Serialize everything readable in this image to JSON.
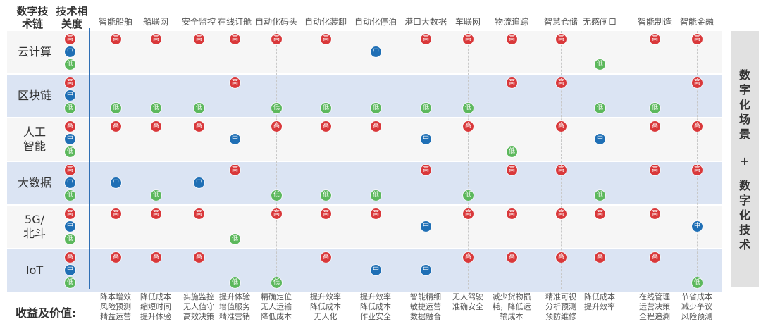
{
  "header": {
    "tech_col": "数字技术链",
    "rel_col": "技术相关度"
  },
  "levels": {
    "high": "高",
    "mid": "中",
    "low": "低"
  },
  "colors": {
    "high": "#d9383a",
    "mid": "#1f6fb5",
    "low": "#5cb85c"
  },
  "scenarios": [
    {
      "name": "智能船舶",
      "benefit": [
        "降本增效",
        "风险预测",
        "精益运营"
      ]
    },
    {
      "name": "船联网",
      "benefit": [
        "降低成本",
        "缩短时间",
        "提升体验"
      ]
    },
    {
      "name": "安全监控",
      "benefit": [
        "实施监控",
        "无人值守",
        "高效决策"
      ]
    },
    {
      "name": "在线订舱",
      "benefit": [
        "提升体验",
        "增值服务",
        "精准营销"
      ]
    },
    {
      "name": "自动化码头",
      "benefit": [
        "精确定位",
        "无人运输",
        "降低成本"
      ]
    },
    {
      "name": "自动化装卸",
      "benefit": [
        "提升效率",
        "降低成本",
        "无人化"
      ]
    },
    {
      "name": "自动化停泊",
      "benefit": [
        "提升效率",
        "降低成本",
        "作业安全"
      ]
    },
    {
      "name": "港口大数据",
      "benefit": [
        "智能精细",
        "敏捷运营",
        "数据融合"
      ]
    },
    {
      "name": "车联网",
      "benefit": [
        "无人驾驶",
        "准确安全"
      ]
    },
    {
      "name": "物流追踪",
      "benefit": [
        "减少货物损",
        "耗，降低运",
        "输成本"
      ]
    },
    {
      "name": "智慧仓储",
      "benefit": [
        "精准可视",
        "分析预测",
        "预防维修"
      ]
    },
    {
      "name": "无感闸口",
      "benefit": [
        "降低成本",
        "提升效率"
      ]
    },
    {
      "name": "智能制造",
      "benefit": [
        "在线管理",
        "运营决策",
        "全程追溯"
      ]
    },
    {
      "name": "智能金融",
      "benefit": [
        "节省成本",
        "减少争议",
        "风险预测"
      ]
    }
  ],
  "technologies": [
    {
      "name": "云计算",
      "lines": [
        "云计算"
      ],
      "matrix": [
        "H",
        "H",
        "H",
        "H",
        "H",
        "H",
        "M",
        "H",
        "H",
        "H",
        "H",
        "L",
        "H",
        "H"
      ]
    },
    {
      "name": "区块链",
      "lines": [
        "区块链"
      ],
      "matrix": [
        "L",
        "L",
        "L",
        "H",
        "L",
        "L",
        "L",
        "L",
        "L",
        "H",
        "H",
        "L",
        "L",
        "H"
      ]
    },
    {
      "name": "人工智能",
      "lines": [
        "人工",
        "智能"
      ],
      "matrix": [
        "H",
        "H",
        "H",
        "M",
        "H",
        "H",
        "H",
        "M",
        "H",
        "L",
        "H",
        "M",
        "H",
        "H"
      ]
    },
    {
      "name": "大数据",
      "lines": [
        "大数据"
      ],
      "matrix": [
        "M",
        "L",
        "M",
        "H",
        "L",
        "L",
        "L",
        "H",
        "L",
        "H",
        "H",
        "L",
        "H",
        "H"
      ]
    },
    {
      "name": "5G/北斗",
      "lines": [
        "5G/",
        "北斗"
      ],
      "matrix": [
        "H",
        "H",
        "H",
        "L",
        "H",
        "H",
        "H",
        "M",
        "H",
        "H",
        "H",
        "H",
        "H",
        "M"
      ]
    },
    {
      "name": "IoT",
      "lines": [
        "IoT"
      ],
      "matrix": [
        "H",
        "H",
        "H",
        "L",
        "L",
        "H",
        "M",
        "M",
        "H",
        "H",
        "H",
        "H",
        "H",
        "L"
      ]
    }
  ],
  "footer": {
    "label": "收益及价值:"
  },
  "side": {
    "top": [
      "数",
      "字",
      "化",
      "场",
      "景"
    ],
    "plus": "+",
    "bottom": [
      "数",
      "字",
      "化",
      "技",
      "术"
    ]
  }
}
